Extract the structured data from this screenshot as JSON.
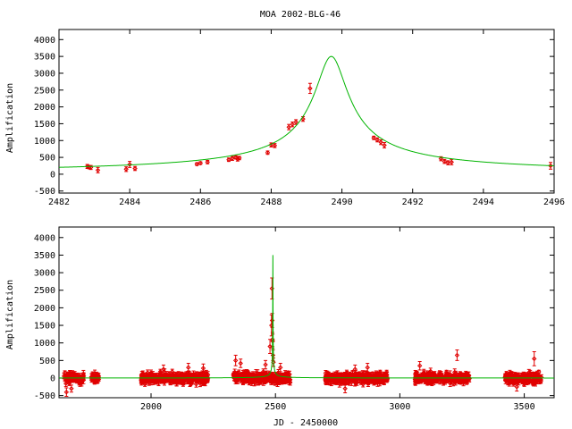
{
  "title": "MOA 2002-BLG-46",
  "colors": {
    "model": "#00b400",
    "points": "#e00000",
    "axes": "#000000"
  },
  "chart_data": [
    {
      "type": "line",
      "panel": "top",
      "ylabel": "Amplification",
      "xlabel": "",
      "xlim": [
        2482,
        2496
      ],
      "ylim": [
        -560,
        4300
      ],
      "xticks": [
        2482,
        2484,
        2486,
        2488,
        2490,
        2492,
        2494,
        2496
      ],
      "yticks": [
        -500,
        0,
        500,
        1000,
        1500,
        2000,
        2500,
        3000,
        3500,
        4000
      ],
      "grid": false,
      "model": {
        "t0": 2489.7,
        "peak": 3500,
        "halfwidth": 0.45
      },
      "series": [
        {
          "x": [
            2482.8,
            2482.85,
            2482.9,
            2483.1,
            2483.9,
            2484.0,
            2484.15,
            2485.9,
            2486.0,
            2486.2,
            2486.8,
            2486.9,
            2487.0,
            2487.05,
            2487.1,
            2487.9,
            2488.0,
            2488.1,
            2488.5,
            2488.6,
            2488.7,
            2488.9,
            2489.1,
            2490.9,
            2491.0,
            2491.1,
            2491.2,
            2492.8,
            2492.9,
            2493.0,
            2493.1,
            2495.9
          ],
          "y": [
            230,
            210,
            200,
            120,
            150,
            290,
            170,
            300,
            330,
            360,
            430,
            470,
            500,
            450,
            480,
            640,
            870,
            850,
            1400,
            1480,
            1550,
            1640,
            2550,
            1080,
            1020,
            950,
            860,
            460,
            380,
            340,
            360,
            250
          ],
          "err": [
            60,
            50,
            60,
            80,
            70,
            90,
            60,
            40,
            40,
            50,
            50,
            60,
            50,
            60,
            50,
            50,
            60,
            60,
            80,
            70,
            70,
            70,
            150,
            50,
            60,
            70,
            80,
            60,
            60,
            60,
            80,
            100
          ]
        }
      ]
    },
    {
      "type": "line",
      "panel": "bottom",
      "ylabel": "Amplification",
      "xlabel": "JD - 2450000",
      "xlim": [
        1630,
        3620
      ],
      "ylim": [
        -560,
        4300
      ],
      "xticks": [
        2000,
        2500,
        3000,
        3500
      ],
      "yticks": [
        -500,
        0,
        500,
        1000,
        1500,
        2000,
        2500,
        3000,
        3500,
        4000
      ],
      "grid": false,
      "model": {
        "t0": 2489.7,
        "peak": 3500,
        "halfwidth": 0.45
      },
      "seasons": [
        [
          1650,
          1730
        ],
        [
          1760,
          1790
        ],
        [
          1960,
          2230
        ],
        [
          2330,
          2560
        ],
        [
          2700,
          2950
        ],
        [
          3060,
          3280
        ],
        [
          3420,
          3570
        ]
      ],
      "highlights": {
        "x": [
          1660,
          1680,
          2050,
          2150,
          2210,
          2340,
          2360,
          2460,
          2478,
          2484,
          2486,
          2487,
          2488,
          2489,
          2490,
          2492,
          2520,
          2780,
          2820,
          2870,
          3230,
          3080,
          3540,
          3470
        ],
        "y": [
          -400,
          -300,
          250,
          300,
          280,
          500,
          420,
          380,
          900,
          1500,
          2550,
          1640,
          1100,
          1050,
          650,
          450,
          300,
          -300,
          250,
          300,
          650,
          350,
          550,
          -250
        ],
        "err": [
          120,
          100,
          120,
          120,
          120,
          150,
          120,
          120,
          200,
          300,
          300,
          200,
          200,
          200,
          150,
          120,
          120,
          120,
          120,
          120,
          150,
          120,
          200,
          120
        ]
      }
    }
  ]
}
